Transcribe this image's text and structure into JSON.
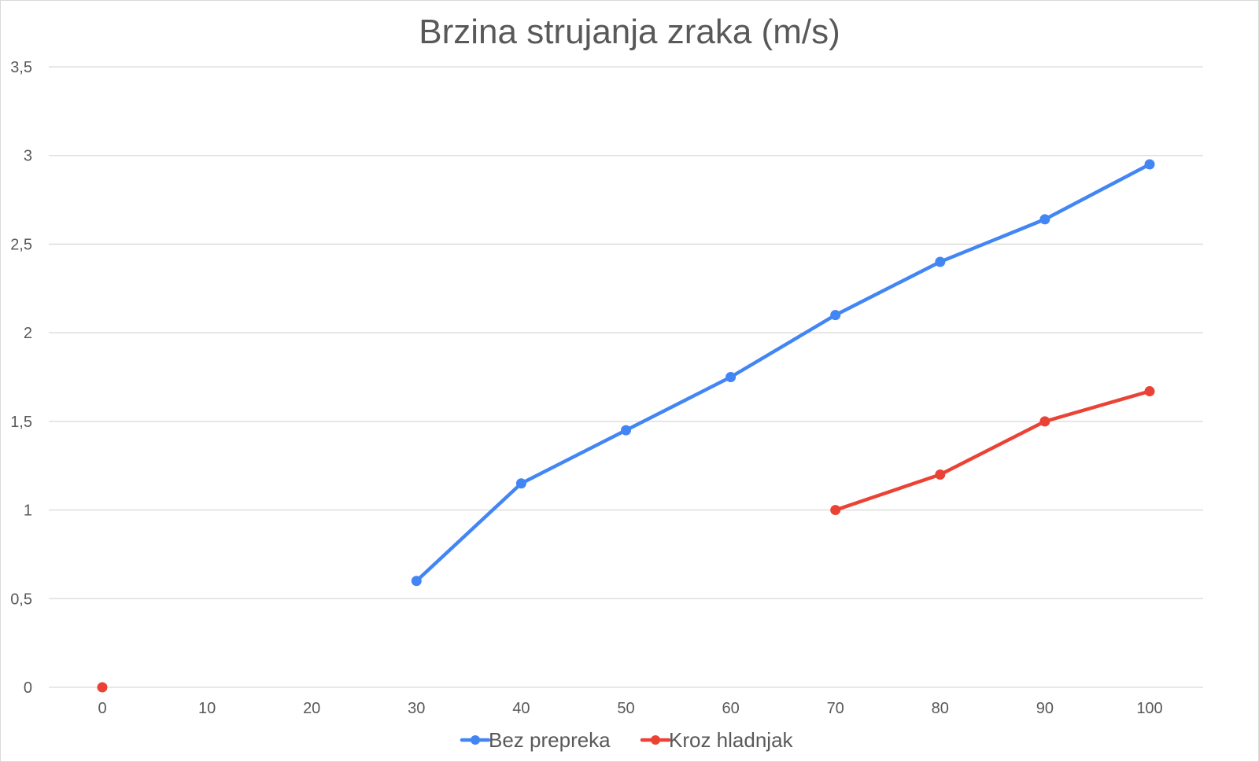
{
  "chart_data": {
    "type": "line",
    "title": "Brzina strujanja zraka (m/s)",
    "xlabel": "",
    "ylabel": "",
    "x_ticks": [
      "0",
      "10",
      "20",
      "30",
      "40",
      "50",
      "60",
      "70",
      "80",
      "90",
      "100"
    ],
    "y_ticks": [
      "0",
      "0,5",
      "1",
      "1,5",
      "2",
      "2,5",
      "3",
      "3,5"
    ],
    "xlim": [
      0,
      100
    ],
    "ylim": [
      0,
      3.5
    ],
    "grid": true,
    "legend_position": "bottom",
    "series": [
      {
        "name": "Bez prepreka",
        "color": "#4285f4",
        "points": [
          {
            "x": 30,
            "y": 0.6
          },
          {
            "x": 40,
            "y": 1.15
          },
          {
            "x": 50,
            "y": 1.45
          },
          {
            "x": 60,
            "y": 1.75
          },
          {
            "x": 70,
            "y": 2.1
          },
          {
            "x": 80,
            "y": 2.4
          },
          {
            "x": 90,
            "y": 2.64
          },
          {
            "x": 100,
            "y": 2.95
          }
        ]
      },
      {
        "name": "Kroz hladnjak",
        "color": "#ea4335",
        "points": [
          {
            "x": 0,
            "y": 0
          },
          {
            "x": 70,
            "y": 1.0
          },
          {
            "x": 80,
            "y": 1.2
          },
          {
            "x": 90,
            "y": 1.5
          },
          {
            "x": 100,
            "y": 1.67
          }
        ],
        "segments": [
          [
            0
          ],
          [
            1,
            2,
            3,
            4
          ]
        ]
      }
    ]
  }
}
